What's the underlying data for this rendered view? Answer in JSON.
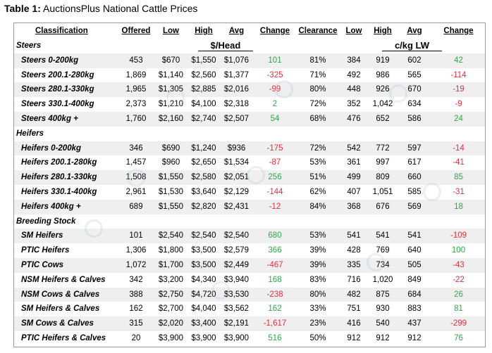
{
  "title": {
    "bold": "Table 1:",
    "text": " AuctionsPlus National Cattle Prices"
  },
  "headers": [
    "Classification",
    "Offered",
    "Low",
    "High",
    "Avg",
    "Change",
    "Clearance",
    "Low",
    "High",
    "Avg",
    "Change"
  ],
  "units": {
    "head": "$/Head",
    "lw": "c/kg LW"
  },
  "colors": {
    "positive": "#2fa64a",
    "negative": "#e0303e",
    "shade": "#efefef",
    "border": "#9a9a9a"
  },
  "sections": [
    {
      "name": "Steers",
      "rows": [
        {
          "classification": "Steers 0-200kg",
          "offered": "453",
          "low": "$670",
          "high": "$1,550",
          "avg": "$1,076",
          "change": "101",
          "clearance": "81%",
          "lw_low": "384",
          "lw_high": "919",
          "lw_avg": "602",
          "lw_change": "42"
        },
        {
          "classification": "Steers 200.1-280kg",
          "offered": "1,869",
          "low": "$1,140",
          "high": "$2,560",
          "avg": "$1,377",
          "change": "-325",
          "clearance": "71%",
          "lw_low": "492",
          "lw_high": "986",
          "lw_avg": "565",
          "lw_change": "-114"
        },
        {
          "classification": "Steers 280.1-330kg",
          "offered": "1,965",
          "low": "$1,305",
          "high": "$2,885",
          "avg": "$2,016",
          "change": "-99",
          "clearance": "80%",
          "lw_low": "448",
          "lw_high": "926",
          "lw_avg": "670",
          "lw_change": "-19"
        },
        {
          "classification": "Steers 330.1-400kg",
          "offered": "2,373",
          "low": "$1,210",
          "high": "$4,100",
          "avg": "$2,318",
          "change": "2",
          "clearance": "72%",
          "lw_low": "352",
          "lw_high": "1,042",
          "lw_avg": "634",
          "lw_change": "-9"
        },
        {
          "classification": "Steers 400kg +",
          "offered": "1,760",
          "low": "$2,160",
          "high": "$2,740",
          "avg": "$2,507",
          "change": "54",
          "clearance": "68%",
          "lw_low": "476",
          "lw_high": "652",
          "lw_avg": "586",
          "lw_change": "24"
        }
      ]
    },
    {
      "name": "Heifers",
      "rows": [
        {
          "classification": "Heifers 0-200kg",
          "offered": "346",
          "low": "$690",
          "high": "$1,240",
          "avg": "$936",
          "change": "-175",
          "clearance": "72%",
          "lw_low": "542",
          "lw_high": "772",
          "lw_avg": "597",
          "lw_change": "-14"
        },
        {
          "classification": "Heifers 200.1-280kg",
          "offered": "1,457",
          "low": "$960",
          "high": "$2,650",
          "avg": "$1,534",
          "change": "-87",
          "clearance": "53%",
          "lw_low": "361",
          "lw_high": "997",
          "lw_avg": "617",
          "lw_change": "-41"
        },
        {
          "classification": "Heifers 280.1-330kg",
          "offered": "1,508",
          "low": "$1,550",
          "high": "$2,580",
          "avg": "$2,051",
          "change": "256",
          "clearance": "51%",
          "lw_low": "499",
          "lw_high": "809",
          "lw_avg": "660",
          "lw_change": "85"
        },
        {
          "classification": "Heifers 330.1-400kg",
          "offered": "2,961",
          "low": "$1,530",
          "high": "$3,640",
          "avg": "$2,129",
          "change": "-144",
          "clearance": "62%",
          "lw_low": "407",
          "lw_high": "1,051",
          "lw_avg": "585",
          "lw_change": "-31"
        },
        {
          "classification": "Heifers 400kg +",
          "offered": "689",
          "low": "$1,550",
          "high": "$2,820",
          "avg": "$2,431",
          "change": "-12",
          "clearance": "84%",
          "lw_low": "368",
          "lw_high": "676",
          "lw_avg": "569",
          "lw_change": "18"
        }
      ]
    },
    {
      "name": "Breeding Stock",
      "rows": [
        {
          "classification": "SM Heifers",
          "offered": "101",
          "low": "$2,540",
          "high": "$2,540",
          "avg": "$2,540",
          "change": "680",
          "clearance": "53%",
          "lw_low": "541",
          "lw_high": "541",
          "lw_avg": "541",
          "lw_change": "-109"
        },
        {
          "classification": "PTIC Heifers",
          "offered": "1,306",
          "low": "$1,800",
          "high": "$3,500",
          "avg": "$2,579",
          "change": "366",
          "clearance": "39%",
          "lw_low": "428",
          "lw_high": "769",
          "lw_avg": "640",
          "lw_change": "100"
        },
        {
          "classification": "PTIC Cows",
          "offered": "1,072",
          "low": "$1,700",
          "high": "$3,500",
          "avg": "$2,449",
          "change": "-467",
          "clearance": "39%",
          "lw_low": "335",
          "lw_high": "734",
          "lw_avg": "505",
          "lw_change": "-43"
        },
        {
          "classification": "NSM Heifers & Calves",
          "offered": "342",
          "low": "$3,200",
          "high": "$4,340",
          "avg": "$3,940",
          "change": "168",
          "clearance": "83%",
          "lw_low": "716",
          "lw_high": "1,020",
          "lw_avg": "849",
          "lw_change": "-22"
        },
        {
          "classification": "NSM Cows & Calves",
          "offered": "388",
          "low": "$2,750",
          "high": "$4,720",
          "avg": "$3,530",
          "change": "-238",
          "clearance": "80%",
          "lw_low": "482",
          "lw_high": "875",
          "lw_avg": "684",
          "lw_change": "26"
        },
        {
          "classification": "SM Heifers & Calves",
          "offered": "162",
          "low": "$2,700",
          "high": "$4,040",
          "avg": "$3,562",
          "change": "162",
          "clearance": "33%",
          "lw_low": "751",
          "lw_high": "930",
          "lw_avg": "883",
          "lw_change": "81"
        },
        {
          "classification": "SM Cows & Calves",
          "offered": "315",
          "low": "$2,020",
          "high": "$3,400",
          "avg": "$2,191",
          "change": "-1,617",
          "clearance": "23%",
          "lw_low": "416",
          "lw_high": "540",
          "lw_avg": "437",
          "lw_change": "-299"
        },
        {
          "classification": "PTIC Heifers & Calves",
          "offered": "20",
          "low": "$3,900",
          "high": "$3,900",
          "avg": "$3,900",
          "change": "516",
          "clearance": "50%",
          "lw_low": "912",
          "lw_high": "912",
          "lw_avg": "912",
          "lw_change": "76"
        }
      ]
    }
  ]
}
